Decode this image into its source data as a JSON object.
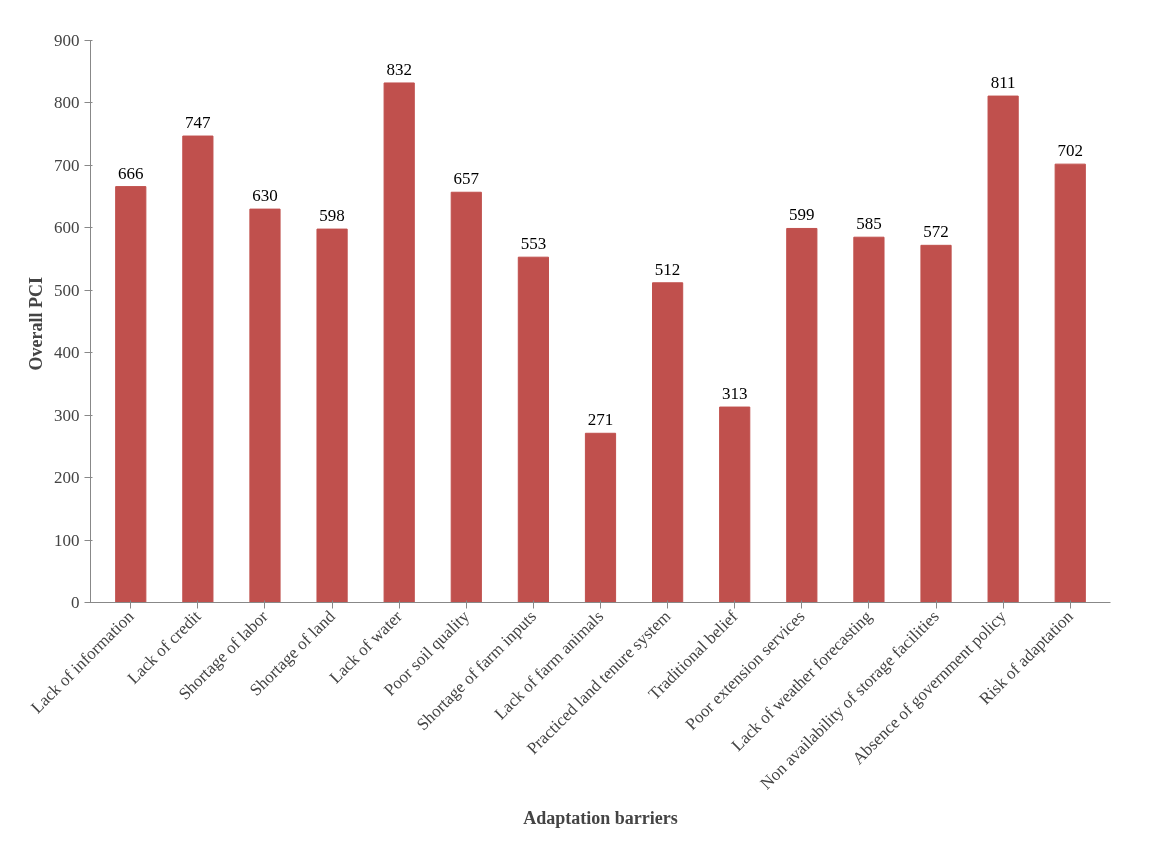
{
  "chart_data": {
    "type": "bar",
    "xlabel": "Adaptation barriers",
    "ylabel": "Overall  PCI",
    "categories": [
      "Lack of information",
      "Lack of credit",
      "Shortage of labor",
      "Shortage of land",
      "Lack of water",
      "Poor soil quality",
      "Shortage of farm inputs",
      "Lack of farm animals",
      "Practiced land tenure system",
      "Traditional belief",
      "Poor extension services",
      "Lack of weather forecasting",
      "Non availability of storage facilities",
      "Absence of government policy",
      "Risk of adaptation"
    ],
    "values": [
      666,
      747,
      630,
      598,
      832,
      657,
      553,
      271,
      512,
      313,
      599,
      585,
      572,
      811,
      702
    ],
    "color": "#c0504d",
    "ylim": [
      0,
      900
    ],
    "yticks": [
      0,
      100,
      200,
      300,
      400,
      500,
      600,
      700,
      800,
      900
    ],
    "grid": false,
    "data_labels": true
  }
}
